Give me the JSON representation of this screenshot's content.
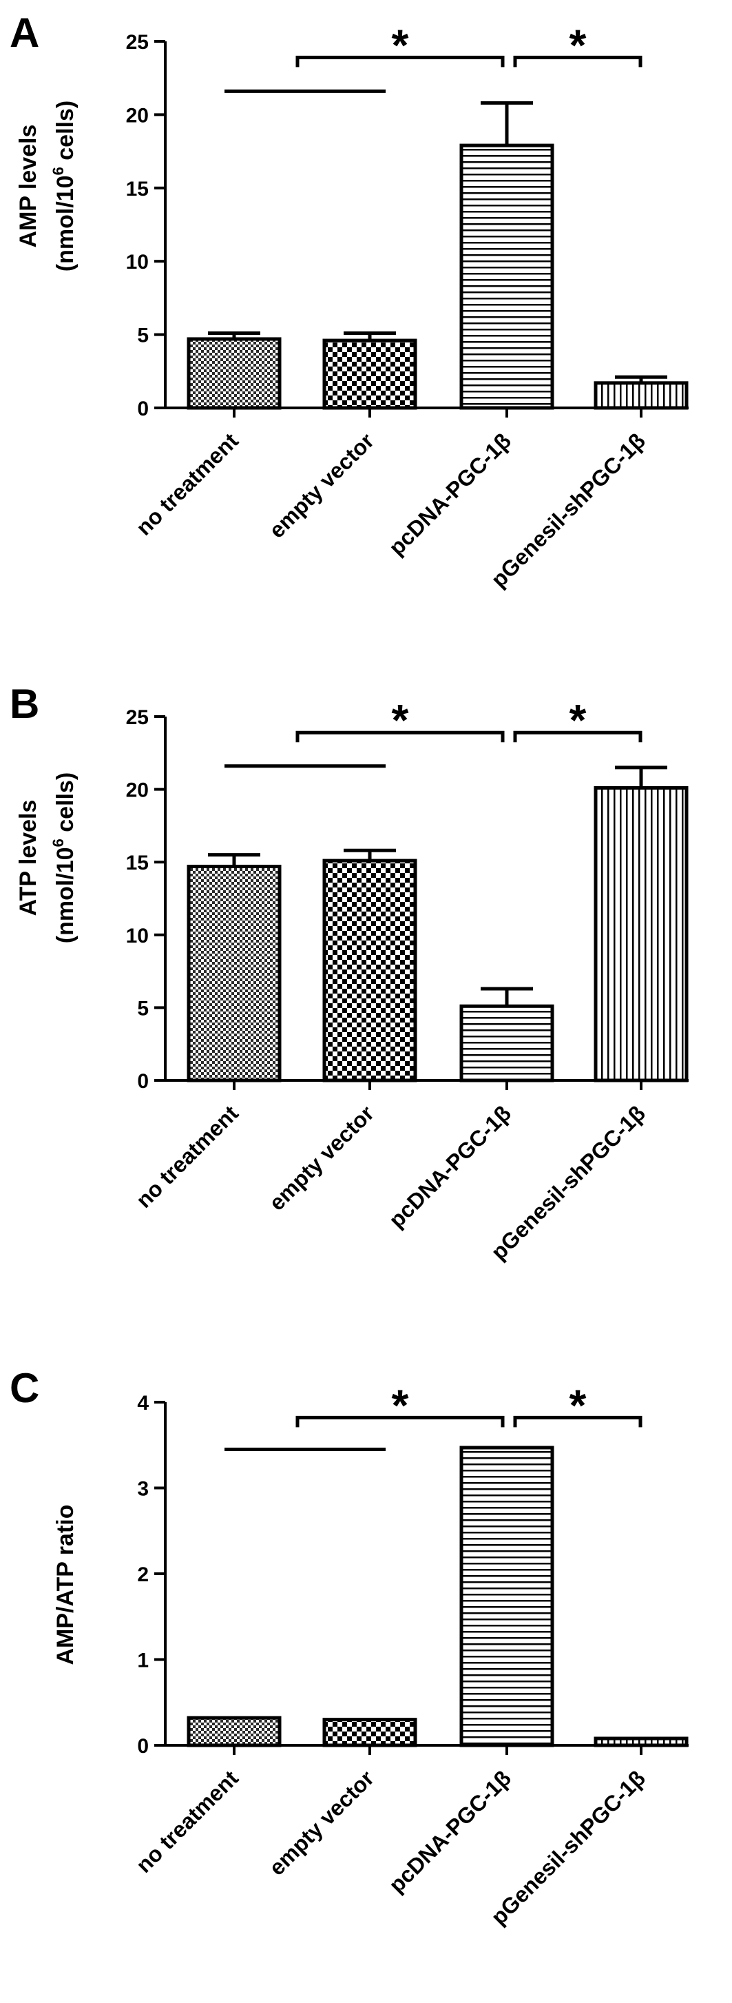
{
  "chart_data": [
    {
      "panel": "A",
      "type": "bar",
      "categories": [
        "no treatment",
        "empty vector",
        "pcDNA-PGC-1β",
        "pGenesil-shPGC-1β"
      ],
      "values": [
        4.7,
        4.6,
        17.9,
        1.7
      ],
      "errors": [
        0.4,
        0.5,
        2.9,
        0.4
      ],
      "ylabel_line1": "AMP levels",
      "ylabel_line2": "(nmol/10",
      "ylabel_sup": "6",
      "ylabel_line2_end": " cells)",
      "ylim": [
        0,
        25
      ],
      "yticks": [
        0,
        5,
        10,
        15,
        20,
        25
      ],
      "patterns": [
        "fine-check",
        "coarse-check",
        "horizontal-lines",
        "vertical-lines"
      ],
      "significance": [
        {
          "from": 0,
          "to": 1,
          "marker": ""
        },
        {
          "from": 1,
          "to": 2,
          "marker": "*"
        },
        {
          "from": 2,
          "to": 3,
          "marker": "*"
        }
      ]
    },
    {
      "panel": "B",
      "type": "bar",
      "categories": [
        "no treatment",
        "empty vector",
        "pcDNA-PGC-1β",
        "pGenesil-shPGC-1β"
      ],
      "values": [
        14.7,
        15.1,
        5.1,
        20.1
      ],
      "errors": [
        0.8,
        0.7,
        1.2,
        1.4
      ],
      "ylabel_line1": "ATP levels",
      "ylabel_line2": "(nmol/10",
      "ylabel_sup": "6",
      "ylabel_line2_end": " cells)",
      "ylim": [
        0,
        25
      ],
      "yticks": [
        0,
        5,
        10,
        15,
        20,
        25
      ],
      "patterns": [
        "fine-check",
        "coarse-check",
        "horizontal-lines",
        "vertical-lines"
      ],
      "significance": [
        {
          "from": 0,
          "to": 1,
          "marker": ""
        },
        {
          "from": 1,
          "to": 2,
          "marker": "*"
        },
        {
          "from": 2,
          "to": 3,
          "marker": "*"
        }
      ]
    },
    {
      "panel": "C",
      "type": "bar",
      "categories": [
        "no treatment",
        "empty vector",
        "pcDNA-PGC-1β",
        "pGenesil-shPGC-1β"
      ],
      "values": [
        0.32,
        0.3,
        3.47,
        0.08
      ],
      "errors": [
        0,
        0,
        0,
        0
      ],
      "ylabel_line1": "AMP/ATP ratio",
      "ylabel_line2": "",
      "ylabel_sup": "",
      "ylabel_line2_end": "",
      "ylim": [
        0,
        4
      ],
      "yticks": [
        0,
        1,
        2,
        3,
        4
      ],
      "patterns": [
        "fine-check",
        "coarse-check",
        "horizontal-lines",
        "vertical-lines"
      ],
      "significance": [
        {
          "from": 0,
          "to": 1,
          "marker": ""
        },
        {
          "from": 1,
          "to": 2,
          "marker": "*"
        },
        {
          "from": 2,
          "to": 3,
          "marker": "*"
        }
      ]
    }
  ]
}
